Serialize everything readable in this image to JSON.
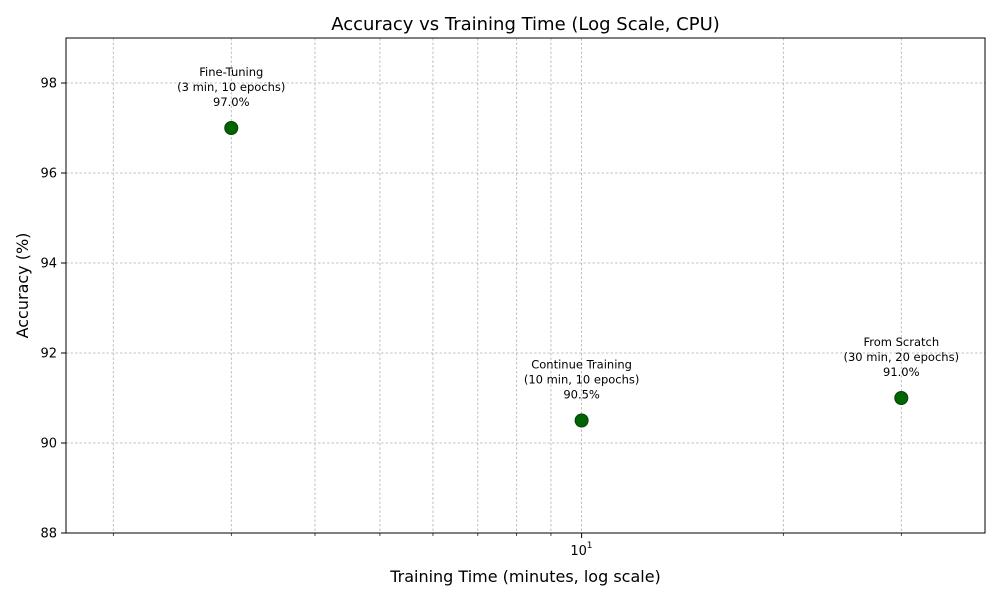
{
  "chart_data": {
    "type": "scatter",
    "title": "Accuracy vs Training Time (Log Scale, CPU)",
    "xlabel": "Training Time (minutes, log scale)",
    "ylabel": "Accuracy (%)",
    "xscale": "log",
    "xlim": [
      1.7,
      40
    ],
    "ylim": [
      88,
      99
    ],
    "yticks": [
      88,
      90,
      92,
      94,
      96,
      98
    ],
    "xticks_major": [
      {
        "value": 10,
        "base": "10",
        "exponent": "1"
      }
    ],
    "grid": true,
    "marker_color": "#006400",
    "points": [
      {
        "x": 3,
        "y": 97.0,
        "label_lines": [
          "Fine-Tuning",
          "(3 min, 10 epochs)",
          "97.0%"
        ]
      },
      {
        "x": 10,
        "y": 90.5,
        "label_lines": [
          "Continue Training",
          "(10 min, 10 epochs)",
          "90.5%"
        ]
      },
      {
        "x": 30,
        "y": 91.0,
        "label_lines": [
          "From Scratch",
          "(30 min, 20 epochs)",
          "91.0%"
        ]
      }
    ]
  }
}
